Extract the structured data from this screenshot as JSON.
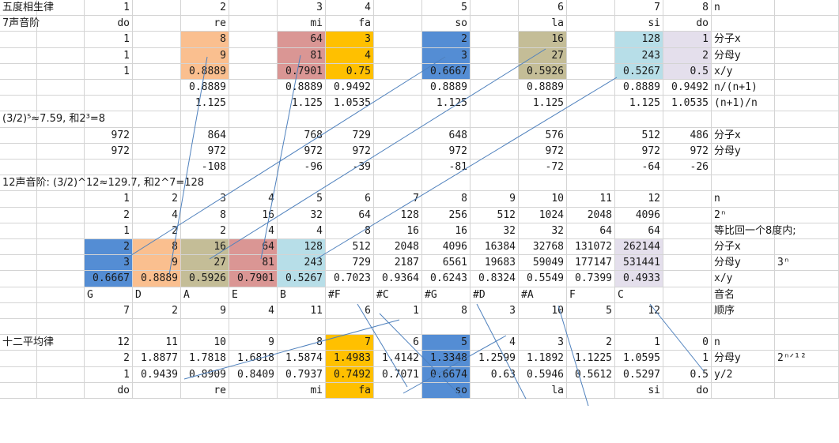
{
  "colors": {
    "blue": "#548dd4",
    "peach": "#fabf8f",
    "olive": "#c4bd97",
    "rose": "#da9694",
    "gold": "#ffc000",
    "sky": "#b7dee8",
    "lavender": "#e4dfec",
    "line": "#4f81bd"
  },
  "rows": [
    [
      {
        "c": 0,
        "s": 2,
        "v": "五度相生律",
        "a": "txt",
        "o": 1
      },
      {
        "c": 2,
        "v": "1"
      },
      {
        "c": 4,
        "v": "2"
      },
      {
        "c": 6,
        "v": "3"
      },
      {
        "c": 7,
        "v": "4"
      },
      {
        "c": 9,
        "v": "5"
      },
      {
        "c": 11,
        "v": "6"
      },
      {
        "c": 13,
        "v": "7"
      },
      {
        "c": 14,
        "v": "8"
      },
      {
        "c": 15,
        "v": "n",
        "a": "txt"
      }
    ],
    [
      {
        "c": 0,
        "s": 2,
        "v": "7声音阶",
        "a": "txt",
        "o": 1
      },
      {
        "c": 2,
        "v": "do"
      },
      {
        "c": 4,
        "v": "re"
      },
      {
        "c": 6,
        "v": "mi"
      },
      {
        "c": 7,
        "v": "fa"
      },
      {
        "c": 9,
        "v": "so"
      },
      {
        "c": 11,
        "v": "la"
      },
      {
        "c": 13,
        "v": "si"
      },
      {
        "c": 14,
        "v": "do"
      }
    ],
    [
      {
        "c": 2,
        "v": "1"
      },
      {
        "c": 4,
        "v": "8",
        "b": "peach"
      },
      {
        "c": 6,
        "v": "64",
        "b": "rose"
      },
      {
        "c": 7,
        "v": "3",
        "b": "gold"
      },
      {
        "c": 9,
        "v": "2",
        "b": "blue"
      },
      {
        "c": 11,
        "v": "16",
        "b": "olive"
      },
      {
        "c": 13,
        "v": "128",
        "b": "sky"
      },
      {
        "c": 14,
        "v": "1",
        "b": "lavender"
      },
      {
        "c": 15,
        "v": "分子x",
        "a": "txt"
      }
    ],
    [
      {
        "c": 2,
        "v": "1"
      },
      {
        "c": 4,
        "v": "9",
        "b": "peach"
      },
      {
        "c": 6,
        "v": "81",
        "b": "rose"
      },
      {
        "c": 7,
        "v": "4",
        "b": "gold"
      },
      {
        "c": 9,
        "v": "3",
        "b": "blue"
      },
      {
        "c": 11,
        "v": "27",
        "b": "olive"
      },
      {
        "c": 13,
        "v": "243",
        "b": "sky"
      },
      {
        "c": 14,
        "v": "2",
        "b": "lavender"
      },
      {
        "c": 15,
        "v": "分母y",
        "a": "txt"
      }
    ],
    [
      {
        "c": 2,
        "v": "1"
      },
      {
        "c": 4,
        "v": "0.8889",
        "b": "peach"
      },
      {
        "c": 6,
        "v": "0.7901",
        "b": "rose"
      },
      {
        "c": 7,
        "v": "0.75",
        "b": "gold"
      },
      {
        "c": 9,
        "v": "0.6667",
        "b": "blue"
      },
      {
        "c": 11,
        "v": "0.5926",
        "b": "olive"
      },
      {
        "c": 13,
        "v": "0.5267",
        "b": "sky"
      },
      {
        "c": 14,
        "v": "0.5",
        "b": "lavender"
      },
      {
        "c": 15,
        "v": "x/y",
        "a": "txt"
      }
    ],
    [
      {
        "c": 4,
        "v": "0.8889"
      },
      {
        "c": 6,
        "v": "0.8889"
      },
      {
        "c": 7,
        "v": "0.9492"
      },
      {
        "c": 9,
        "v": "0.8889"
      },
      {
        "c": 11,
        "v": "0.8889"
      },
      {
        "c": 13,
        "v": "0.8889"
      },
      {
        "c": 14,
        "v": "0.9492"
      },
      {
        "c": 15,
        "v": "n/(n+1)",
        "a": "txt"
      }
    ],
    [
      {
        "c": 4,
        "v": "1.125"
      },
      {
        "c": 6,
        "v": "1.125"
      },
      {
        "c": 7,
        "v": "1.0535"
      },
      {
        "c": 9,
        "v": "1.125"
      },
      {
        "c": 11,
        "v": "1.125"
      },
      {
        "c": 13,
        "v": "1.125"
      },
      {
        "c": 14,
        "v": "1.0535"
      },
      {
        "c": 15,
        "v": "(n+1)/n",
        "a": "txt"
      }
    ],
    [
      {
        "c": 0,
        "s": 4,
        "v": " (3/2)⁵≈7.59, 和2³=8",
        "a": "txt",
        "o": 1
      }
    ],
    [
      {
        "c": 2,
        "v": "972"
      },
      {
        "c": 4,
        "v": "864"
      },
      {
        "c": 6,
        "v": "768"
      },
      {
        "c": 7,
        "v": "729"
      },
      {
        "c": 9,
        "v": "648"
      },
      {
        "c": 11,
        "v": "576"
      },
      {
        "c": 13,
        "v": "512"
      },
      {
        "c": 14,
        "v": "486"
      },
      {
        "c": 15,
        "v": "分子x",
        "a": "txt"
      }
    ],
    [
      {
        "c": 2,
        "v": "972"
      },
      {
        "c": 4,
        "v": "972"
      },
      {
        "c": 6,
        "v": "972"
      },
      {
        "c": 7,
        "v": "972"
      },
      {
        "c": 9,
        "v": "972"
      },
      {
        "c": 11,
        "v": "972"
      },
      {
        "c": 13,
        "v": "972"
      },
      {
        "c": 14,
        "v": "972"
      },
      {
        "c": 15,
        "v": "分母y",
        "a": "txt"
      }
    ],
    [
      {
        "c": 4,
        "v": "-108"
      },
      {
        "c": 6,
        "v": "-96"
      },
      {
        "c": 7,
        "v": "-39"
      },
      {
        "c": 9,
        "v": "-81"
      },
      {
        "c": 11,
        "v": "-72"
      },
      {
        "c": 13,
        "v": "-64"
      },
      {
        "c": 14,
        "v": "-26"
      }
    ],
    [
      {
        "c": 0,
        "s": 6,
        "v": "12声音阶: (3/2)^12≈129.7, 和2^7=128",
        "a": "txt",
        "o": 1
      }
    ],
    [
      {
        "c": 2,
        "v": "1"
      },
      {
        "c": 3,
        "v": "2"
      },
      {
        "c": 4,
        "v": "3"
      },
      {
        "c": 5,
        "v": "4"
      },
      {
        "c": 6,
        "v": "5"
      },
      {
        "c": 7,
        "v": "6"
      },
      {
        "c": 8,
        "v": "7"
      },
      {
        "c": 9,
        "v": "8"
      },
      {
        "c": 10,
        "v": "9"
      },
      {
        "c": 11,
        "v": "10"
      },
      {
        "c": 12,
        "v": "11"
      },
      {
        "c": 13,
        "v": "12"
      },
      {
        "c": 15,
        "v": "n",
        "a": "txt"
      }
    ],
    [
      {
        "c": 2,
        "v": "2"
      },
      {
        "c": 3,
        "v": "4"
      },
      {
        "c": 4,
        "v": "8"
      },
      {
        "c": 5,
        "v": "16"
      },
      {
        "c": 6,
        "v": "32"
      },
      {
        "c": 7,
        "v": "64"
      },
      {
        "c": 8,
        "v": "128"
      },
      {
        "c": 9,
        "v": "256"
      },
      {
        "c": 10,
        "v": "512"
      },
      {
        "c": 11,
        "v": "1024"
      },
      {
        "c": 12,
        "v": "2048"
      },
      {
        "c": 13,
        "v": "4096"
      },
      {
        "c": 15,
        "v": "2ⁿ",
        "a": "txt"
      }
    ],
    [
      {
        "c": 2,
        "v": "1"
      },
      {
        "c": 3,
        "v": "2"
      },
      {
        "c": 4,
        "v": "2"
      },
      {
        "c": 5,
        "v": "4"
      },
      {
        "c": 6,
        "v": "4"
      },
      {
        "c": 7,
        "v": "8"
      },
      {
        "c": 8,
        "v": "16"
      },
      {
        "c": 9,
        "v": "16"
      },
      {
        "c": 10,
        "v": "32"
      },
      {
        "c": 11,
        "v": "32"
      },
      {
        "c": 12,
        "v": "64"
      },
      {
        "c": 13,
        "v": "64"
      },
      {
        "c": 15,
        "s": 3,
        "v": "等比回一个8度内;",
        "a": "txt",
        "o": 1
      }
    ],
    [
      {
        "c": 2,
        "v": "2",
        "b": "blue"
      },
      {
        "c": 3,
        "v": "8",
        "b": "peach"
      },
      {
        "c": 4,
        "v": "16",
        "b": "olive"
      },
      {
        "c": 5,
        "v": "64",
        "b": "rose"
      },
      {
        "c": 6,
        "v": "128",
        "b": "sky"
      },
      {
        "c": 7,
        "v": "512"
      },
      {
        "c": 8,
        "v": "2048"
      },
      {
        "c": 9,
        "v": "4096"
      },
      {
        "c": 10,
        "v": "16384"
      },
      {
        "c": 11,
        "v": "32768"
      },
      {
        "c": 12,
        "v": "131072"
      },
      {
        "c": 13,
        "v": "262144",
        "b": "lavender"
      },
      {
        "c": 15,
        "v": "分子x",
        "a": "txt"
      }
    ],
    [
      {
        "c": 2,
        "v": "3",
        "b": "blue"
      },
      {
        "c": 3,
        "v": "9",
        "b": "peach"
      },
      {
        "c": 4,
        "v": "27",
        "b": "olive"
      },
      {
        "c": 5,
        "v": "81",
        "b": "rose"
      },
      {
        "c": 6,
        "v": "243",
        "b": "sky"
      },
      {
        "c": 7,
        "v": "729"
      },
      {
        "c": 8,
        "v": "2187"
      },
      {
        "c": 9,
        "v": "6561"
      },
      {
        "c": 10,
        "v": "19683"
      },
      {
        "c": 11,
        "v": "59049"
      },
      {
        "c": 12,
        "v": "177147"
      },
      {
        "c": 13,
        "v": "531441",
        "b": "lavender"
      },
      {
        "c": 15,
        "v": "分母y",
        "a": "txt"
      },
      {
        "c": 16,
        "v": "3ⁿ",
        "a": "txt"
      }
    ],
    [
      {
        "c": 2,
        "v": "0.6667",
        "b": "blue"
      },
      {
        "c": 3,
        "v": "0.8889",
        "b": "peach"
      },
      {
        "c": 4,
        "v": "0.5926",
        "b": "olive"
      },
      {
        "c": 5,
        "v": "0.7901",
        "b": "rose"
      },
      {
        "c": 6,
        "v": "0.5267",
        "b": "sky"
      },
      {
        "c": 7,
        "v": "0.7023"
      },
      {
        "c": 8,
        "v": "0.9364"
      },
      {
        "c": 9,
        "v": "0.6243"
      },
      {
        "c": 10,
        "v": "0.8324"
      },
      {
        "c": 11,
        "v": "0.5549"
      },
      {
        "c": 12,
        "v": "0.7399"
      },
      {
        "c": 13,
        "v": "0.4933",
        "b": "lavender"
      },
      {
        "c": 15,
        "v": "x/y",
        "a": "txt"
      }
    ],
    [
      {
        "c": 2,
        "v": "G",
        "a": "txt"
      },
      {
        "c": 3,
        "v": "D",
        "a": "txt"
      },
      {
        "c": 4,
        "v": "A",
        "a": "txt"
      },
      {
        "c": 5,
        "v": "E",
        "a": "txt"
      },
      {
        "c": 6,
        "v": "B",
        "a": "txt"
      },
      {
        "c": 7,
        "v": "#F",
        "a": "txt"
      },
      {
        "c": 8,
        "v": "#C",
        "a": "txt"
      },
      {
        "c": 9,
        "v": "#G",
        "a": "txt"
      },
      {
        "c": 10,
        "v": "#D",
        "a": "txt"
      },
      {
        "c": 11,
        "v": "#A",
        "a": "txt"
      },
      {
        "c": 12,
        "v": "F",
        "a": "txt"
      },
      {
        "c": 13,
        "v": "C",
        "a": "txt"
      },
      {
        "c": 15,
        "v": "音名",
        "a": "txt"
      }
    ],
    [
      {
        "c": 2,
        "v": "7"
      },
      {
        "c": 3,
        "v": "2"
      },
      {
        "c": 4,
        "v": "9"
      },
      {
        "c": 5,
        "v": "4"
      },
      {
        "c": 6,
        "v": "11"
      },
      {
        "c": 7,
        "v": "6"
      },
      {
        "c": 8,
        "v": "1"
      },
      {
        "c": 9,
        "v": "8"
      },
      {
        "c": 10,
        "v": "3"
      },
      {
        "c": 11,
        "v": "10"
      },
      {
        "c": 12,
        "v": "5"
      },
      {
        "c": 13,
        "v": "12"
      },
      {
        "c": 15,
        "v": "顺序",
        "a": "txt"
      }
    ],
    [],
    [
      {
        "c": 0,
        "s": 2,
        "v": "十二平均律",
        "a": "txt",
        "o": 1
      },
      {
        "c": 2,
        "v": "12"
      },
      {
        "c": 3,
        "v": "11"
      },
      {
        "c": 4,
        "v": "10"
      },
      {
        "c": 5,
        "v": "9"
      },
      {
        "c": 6,
        "v": "8"
      },
      {
        "c": 7,
        "v": "7",
        "b": "gold"
      },
      {
        "c": 8,
        "v": "6"
      },
      {
        "c": 9,
        "v": "5",
        "b": "blue"
      },
      {
        "c": 10,
        "v": "4"
      },
      {
        "c": 11,
        "v": "3"
      },
      {
        "c": 12,
        "v": "2"
      },
      {
        "c": 13,
        "v": "1"
      },
      {
        "c": 14,
        "v": "0"
      },
      {
        "c": 15,
        "v": "n",
        "a": "txt"
      }
    ],
    [
      {
        "c": 2,
        "v": "2"
      },
      {
        "c": 3,
        "v": "1.8877"
      },
      {
        "c": 4,
        "v": "1.7818"
      },
      {
        "c": 5,
        "v": "1.6818"
      },
      {
        "c": 6,
        "v": "1.5874"
      },
      {
        "c": 7,
        "v": "1.4983",
        "b": "gold"
      },
      {
        "c": 8,
        "v": "1.4142"
      },
      {
        "c": 9,
        "v": "1.3348",
        "b": "blue"
      },
      {
        "c": 10,
        "v": "1.2599"
      },
      {
        "c": 11,
        "v": "1.1892"
      },
      {
        "c": 12,
        "v": "1.1225"
      },
      {
        "c": 13,
        "v": "1.0595"
      },
      {
        "c": 14,
        "v": "1"
      },
      {
        "c": 15,
        "v": "分母y",
        "a": "txt"
      },
      {
        "c": 16,
        "v": "2ⁿᐟ¹²",
        "a": "txt"
      }
    ],
    [
      {
        "c": 2,
        "v": "1"
      },
      {
        "c": 3,
        "v": "0.9439"
      },
      {
        "c": 4,
        "v": "0.8909"
      },
      {
        "c": 5,
        "v": "0.8409"
      },
      {
        "c": 6,
        "v": "0.7937"
      },
      {
        "c": 7,
        "v": "0.7492",
        "b": "gold"
      },
      {
        "c": 8,
        "v": "0.7071"
      },
      {
        "c": 9,
        "v": "0.6674",
        "b": "blue"
      },
      {
        "c": 10,
        "v": "0.63"
      },
      {
        "c": 11,
        "v": "0.5946"
      },
      {
        "c": 12,
        "v": "0.5612"
      },
      {
        "c": 13,
        "v": "0.5297"
      },
      {
        "c": 14,
        "v": "0.5"
      },
      {
        "c": 15,
        "v": "y/2",
        "a": "txt"
      }
    ],
    [
      {
        "c": 2,
        "v": "do"
      },
      {
        "c": 4,
        "v": "re"
      },
      {
        "c": 6,
        "v": "mi"
      },
      {
        "c": 7,
        "v": "fa",
        "b": "gold"
      },
      {
        "c": 9,
        "v": "so",
        "b": "blue"
      },
      {
        "c": 11,
        "v": "la"
      },
      {
        "c": 13,
        "v": "si"
      },
      {
        "c": 14,
        "v": "do"
      }
    ]
  ]
}
